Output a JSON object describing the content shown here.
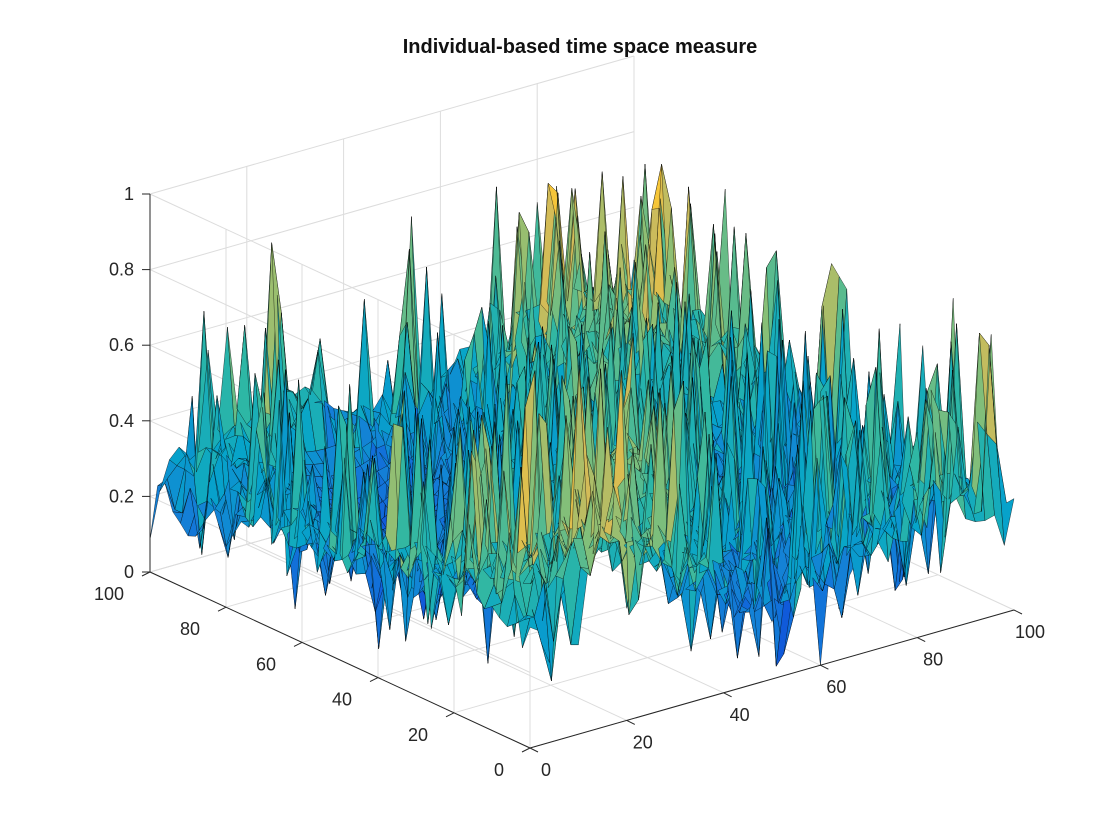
{
  "chart_data": {
    "type": "surface",
    "title": "Individual-based time space measure",
    "xlabel": "",
    "ylabel": "",
    "zlabel": "",
    "xlim": [
      0,
      100
    ],
    "ylim": [
      0,
      100
    ],
    "zlim": [
      0,
      1
    ],
    "x_ticks": [
      "0",
      "20",
      "40",
      "60",
      "80",
      "100"
    ],
    "y_ticks": [
      "0",
      "20",
      "40",
      "60",
      "80",
      "100"
    ],
    "z_ticks": [
      "0",
      "0.2",
      "0.4",
      "0.6",
      "0.8",
      "1"
    ],
    "grid": true,
    "colormap": "parula",
    "colormap_colors": [
      "#352a87",
      "#0f5cdd",
      "#1481d6",
      "#06a4ca",
      "#2eb7a4",
      "#87bf77",
      "#d1bb59",
      "#fec832",
      "#f9fb0e"
    ],
    "surface_description": "noisy surface of values between 0 and 0.9 sampled on a 100x100 grid, with sharp spikes and deep troughs",
    "z_min": 0.0,
    "z_max": 0.9
  }
}
